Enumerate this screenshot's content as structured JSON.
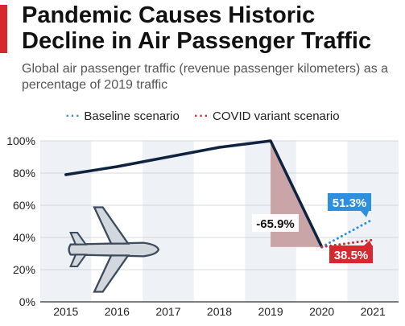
{
  "header": {
    "title": "Pandemic Causes Historic Decline in Air Passenger Traffic",
    "subtitle": "Global air passenger traffic (revenue passenger kilometers) as a percentage of 2019 traffic"
  },
  "legend": {
    "baseline_label": "Baseline scenario",
    "variant_label": "COVID variant scenario",
    "baseline_color": "#2e8fde",
    "variant_color": "#d7282f"
  },
  "icons": {
    "airplane": "airplane-icon"
  },
  "chart_data": {
    "type": "line",
    "categories": [
      "2015",
      "2016",
      "2017",
      "2018",
      "2019",
      "2020",
      "2021"
    ],
    "y_ticks": [
      "0%",
      "20%",
      "40%",
      "60%",
      "80%",
      "100%"
    ],
    "ylim": [
      0,
      100
    ],
    "grid": true,
    "series": [
      {
        "values": [
          79,
          84,
          90,
          96,
          100,
          34.1,
          null
        ],
        "color": "#0f2240",
        "style": "solid"
      },
      {
        "name": "Baseline scenario",
        "values": [
          null,
          null,
          null,
          null,
          null,
          34.1,
          51.3
        ],
        "color": "#2e8fde",
        "style": "dotted"
      },
      {
        "name": "COVID variant scenario",
        "values": [
          null,
          null,
          null,
          null,
          null,
          34.1,
          38.5
        ],
        "color": "#d7282f",
        "style": "dotted"
      }
    ],
    "annotations": {
      "decline_label": "-65.9%",
      "baseline_label": "51.3%",
      "variant_label": "38.5%",
      "decline_fill": "#c9a3a6"
    }
  }
}
